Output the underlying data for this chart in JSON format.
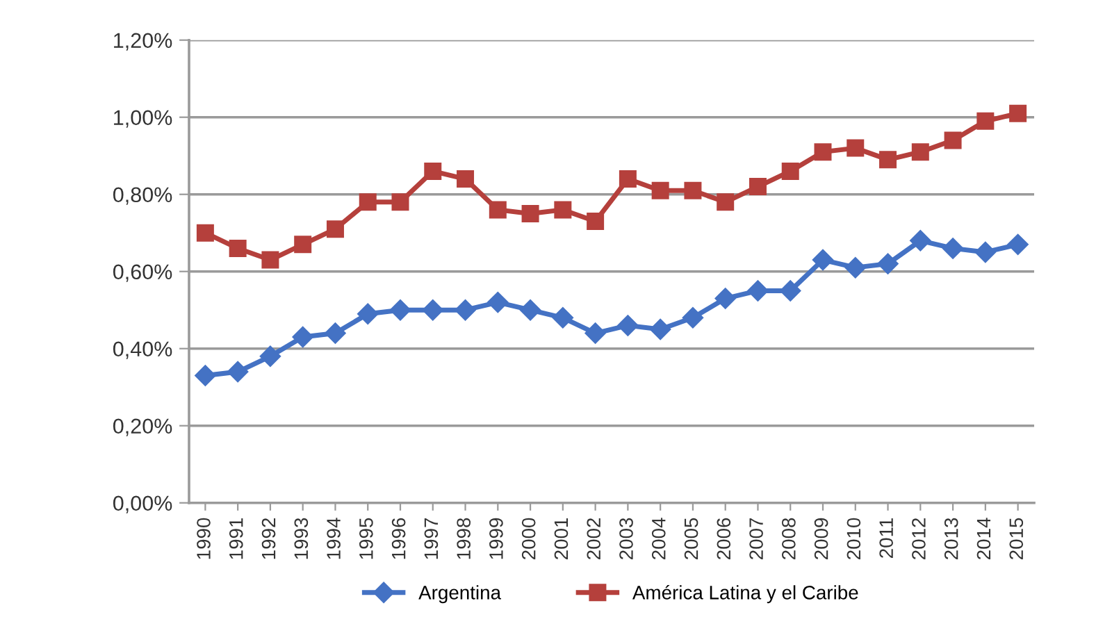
{
  "chart_data": {
    "type": "line",
    "categories": [
      "1990",
      "1991",
      "1992",
      "1993",
      "1994",
      "1995",
      "1996",
      "1997",
      "1998",
      "1999",
      "2000",
      "2001",
      "2002",
      "2003",
      "2004",
      "2005",
      "2006",
      "2007",
      "2008",
      "2009",
      "2010",
      "2011",
      "2012",
      "2013",
      "2014",
      "2015"
    ],
    "series": [
      {
        "name": "Argentina",
        "color": "#4472c4",
        "marker": "diamond",
        "values": [
          0.33,
          0.34,
          0.38,
          0.43,
          0.44,
          0.49,
          0.5,
          0.5,
          0.5,
          0.52,
          0.5,
          0.48,
          0.44,
          0.46,
          0.45,
          0.48,
          0.53,
          0.55,
          0.55,
          0.63,
          0.61,
          0.62,
          0.68,
          0.66,
          0.65,
          0.67
        ]
      },
      {
        "name": "América Latina y el Caribe",
        "color": "#b5403c",
        "marker": "square",
        "values": [
          0.7,
          0.66,
          0.63,
          0.67,
          0.71,
          0.78,
          0.78,
          0.86,
          0.84,
          0.76,
          0.75,
          0.76,
          0.73,
          0.84,
          0.81,
          0.81,
          0.78,
          0.82,
          0.86,
          0.91,
          0.92,
          0.89,
          0.91,
          0.94,
          0.99,
          1.01
        ]
      }
    ],
    "ylim": [
      0,
      1.2
    ],
    "yticks": [
      {
        "value": 0,
        "label": "0,00%"
      },
      {
        "value": 0.2,
        "label": "0,20%"
      },
      {
        "value": 0.4,
        "label": "0,40%"
      },
      {
        "value": 0.6,
        "label": "0,60%"
      },
      {
        "value": 0.8,
        "label": "0,80%"
      },
      {
        "value": 1.0,
        "label": "1,00%"
      },
      {
        "value": 1.2,
        "label": "1,20%"
      }
    ],
    "grid": "y",
    "legend": "bottom",
    "line_style": "solid"
  }
}
